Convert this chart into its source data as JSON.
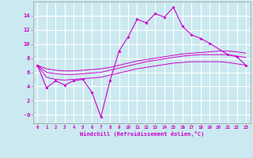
{
  "xlabel": "Windchill (Refroidissement éolien,°C)",
  "background_color": "#cbe9f0",
  "line_color": "#cc00cc",
  "grid_color": "#ffffff",
  "x_hours": [
    0,
    1,
    2,
    3,
    4,
    5,
    6,
    7,
    8,
    9,
    10,
    11,
    12,
    13,
    14,
    15,
    16,
    17,
    18,
    19,
    20,
    21,
    22,
    23
  ],
  "y_main": [
    7.0,
    3.8,
    4.8,
    4.2,
    4.8,
    5.0,
    3.2,
    -0.3,
    4.8,
    9.0,
    11.0,
    13.5,
    13.0,
    14.3,
    13.8,
    15.2,
    12.5,
    11.3,
    10.8,
    10.1,
    null,
    8.5,
    8.2,
    7.0
  ],
  "y_smooth1": [
    7.0,
    6.5,
    6.3,
    6.2,
    6.2,
    6.3,
    6.4,
    6.5,
    6.7,
    7.0,
    7.3,
    7.6,
    7.8,
    8.0,
    8.2,
    8.4,
    8.6,
    8.7,
    8.8,
    8.9,
    9.0,
    9.0,
    8.9,
    8.7
  ],
  "y_smooth2": [
    7.0,
    6.0,
    5.8,
    5.7,
    5.7,
    5.8,
    5.9,
    6.0,
    6.3,
    6.6,
    6.9,
    7.2,
    7.5,
    7.7,
    7.9,
    8.1,
    8.3,
    8.4,
    8.5,
    8.5,
    8.5,
    8.5,
    8.3,
    8.1
  ],
  "y_smooth3": [
    7.0,
    5.3,
    5.0,
    4.9,
    5.0,
    5.1,
    5.2,
    5.3,
    5.6,
    5.9,
    6.2,
    6.5,
    6.7,
    6.9,
    7.1,
    7.3,
    7.4,
    7.5,
    7.5,
    7.5,
    7.5,
    7.4,
    7.2,
    7.0
  ],
  "ylim": [
    -1.2,
    16
  ],
  "yticks": [
    0,
    2,
    4,
    6,
    8,
    10,
    12,
    14
  ],
  "ytick_labels": [
    "-0",
    "2",
    "4",
    "6",
    "8",
    "10",
    "12",
    "14"
  ],
  "figsize": [
    3.2,
    2.0
  ],
  "dpi": 100
}
